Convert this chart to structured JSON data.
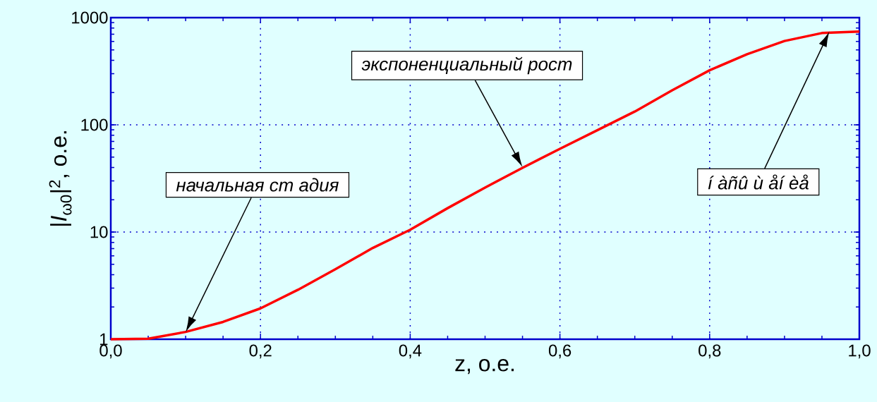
{
  "chart_data": {
    "type": "line",
    "log": "y",
    "xlabel": "z, о.е.",
    "ylabel": "|*I*$_{ω0}$|$^{2}$, о.е.",
    "x": [
      0,
      0.05,
      0.1,
      0.15,
      0.2,
      0.25,
      0.3,
      0.35,
      0.4,
      0.45,
      0.5,
      0.55,
      0.6,
      0.65,
      0.7,
      0.75,
      0.8,
      0.85,
      0.9,
      0.95,
      1.0
    ],
    "series": [
      {
        "color": "#ff0000",
        "values": [
          1,
          1.01,
          1.17,
          1.45,
          1.94,
          2.89,
          4.5,
          7.1,
          10.5,
          16.7,
          26,
          39.7,
          59.8,
          89,
          133,
          210,
          323,
          455,
          605,
          718,
          740
        ]
      }
    ],
    "xlim": [
      0,
      1
    ],
    "ylim": [
      1,
      1000
    ],
    "xticks": [
      {
        "value": 0,
        "label": "0,0"
      },
      {
        "value": 0.2,
        "label": "0,2"
      },
      {
        "value": 0.4,
        "label": "0,4"
      },
      {
        "value": 0.6,
        "label": "0,6"
      },
      {
        "value": 0.8,
        "label": "0,8"
      },
      {
        "value": 1.0,
        "label": "1,0"
      }
    ],
    "yticks": [
      1,
      10,
      100,
      1000
    ],
    "grid": true,
    "marker": "none",
    "line_style": "solid",
    "annotations": [
      "начальная ст адия",
      "экспоненциальный рост",
      "í àñû ù åí èå"
    ]
  }
}
